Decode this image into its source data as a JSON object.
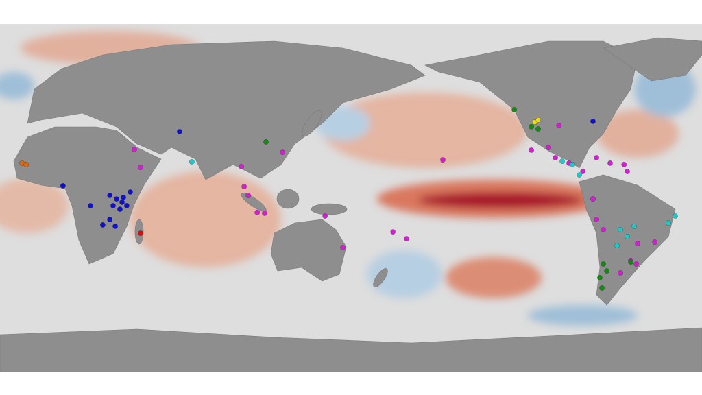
{
  "map": {
    "projection": "equirectangular",
    "center_lon_left_edge": -30,
    "groups": [
      {
        "color": "#1010d0",
        "points": [
          [
            62.1,
            34.4
          ],
          [
            2.3,
            6.4
          ],
          [
            16.4,
            -3.9
          ],
          [
            26.3,
            1.4
          ],
          [
            29.8,
            -0.4
          ],
          [
            33.3,
            0.4
          ],
          [
            36.8,
            3.2
          ],
          [
            28.0,
            -3.9
          ],
          [
            31.5,
            -5.7
          ],
          [
            35.0,
            -3.9
          ],
          [
            26.3,
            -11.0
          ],
          [
            29.1,
            -14.5
          ],
          [
            22.7,
            -13.8
          ],
          [
            32.6,
            -2.1
          ],
          [
            -85.9,
            39.7
          ]
        ]
      },
      {
        "color": "#d020d0",
        "points": [
          [
            38.9,
            25.2
          ],
          [
            42.1,
            15.9
          ],
          [
            93.8,
            16.3
          ],
          [
            114.9,
            23.7
          ],
          [
            95.2,
            6.0
          ],
          [
            97.3,
            1.4
          ],
          [
            101.9,
            -7.4
          ],
          [
            105.7,
            -7.8
          ],
          [
            136.7,
            -9.2
          ],
          [
            145.8,
            -25.5
          ],
          [
            171.5,
            -17.4
          ],
          [
            178.5,
            -20.9
          ],
          [
            -162.9,
            19.8
          ],
          [
            -117.5,
            24.8
          ],
          [
            -108.7,
            26.2
          ],
          [
            -105.2,
            20.9
          ],
          [
            -98.2,
            18.1
          ],
          [
            -91.1,
            13.8
          ],
          [
            -84.1,
            20.9
          ],
          [
            -77.1,
            18.1
          ],
          [
            -70.0,
            17.4
          ],
          [
            -68.3,
            13.8
          ],
          [
            -85.9,
            -0.4
          ],
          [
            -84.1,
            -11.0
          ],
          [
            -80.6,
            -16.3
          ],
          [
            -63.0,
            -23.4
          ],
          [
            -54.2,
            -22.7
          ],
          [
            -66.5,
            -32.2
          ],
          [
            -63.7,
            -34.0
          ],
          [
            -71.8,
            -38.6
          ],
          [
            -103.4,
            37.6
          ]
        ]
      },
      {
        "color": "#20c8c8",
        "points": [
          [
            68.4,
            18.8
          ],
          [
            -101.7,
            19.1
          ],
          [
            -96.4,
            17.4
          ],
          [
            -92.9,
            12.0
          ],
          [
            -71.8,
            -16.3
          ],
          [
            -68.3,
            -19.8
          ],
          [
            -73.6,
            -24.5
          ],
          [
            -43.7,
            -9.2
          ],
          [
            -47.2,
            -12.8
          ],
          [
            -64.8,
            -14.5
          ]
        ]
      },
      {
        "color": "#158a15",
        "points": [
          [
            106.4,
            29.1
          ],
          [
            -126.3,
            45.7
          ],
          [
            -117.5,
            36.9
          ],
          [
            -114.0,
            35.8
          ],
          [
            -80.6,
            -34.0
          ],
          [
            -78.8,
            -37.6
          ],
          [
            -81.3,
            -46.4
          ],
          [
            -66.5,
            -33.0
          ],
          [
            -82.4,
            -41.1
          ]
        ]
      },
      {
        "color": "#e8e010",
        "points": [
          [
            -115.8,
            39.3
          ],
          [
            -114.0,
            40.4
          ]
        ]
      },
      {
        "color": "#e06a10",
        "points": [
          [
            -18.7,
            18.1
          ],
          [
            -16.6,
            17.4
          ]
        ]
      },
      {
        "color": "#d01010",
        "points": [
          [
            42.1,
            -18.1
          ]
        ]
      }
    ]
  }
}
